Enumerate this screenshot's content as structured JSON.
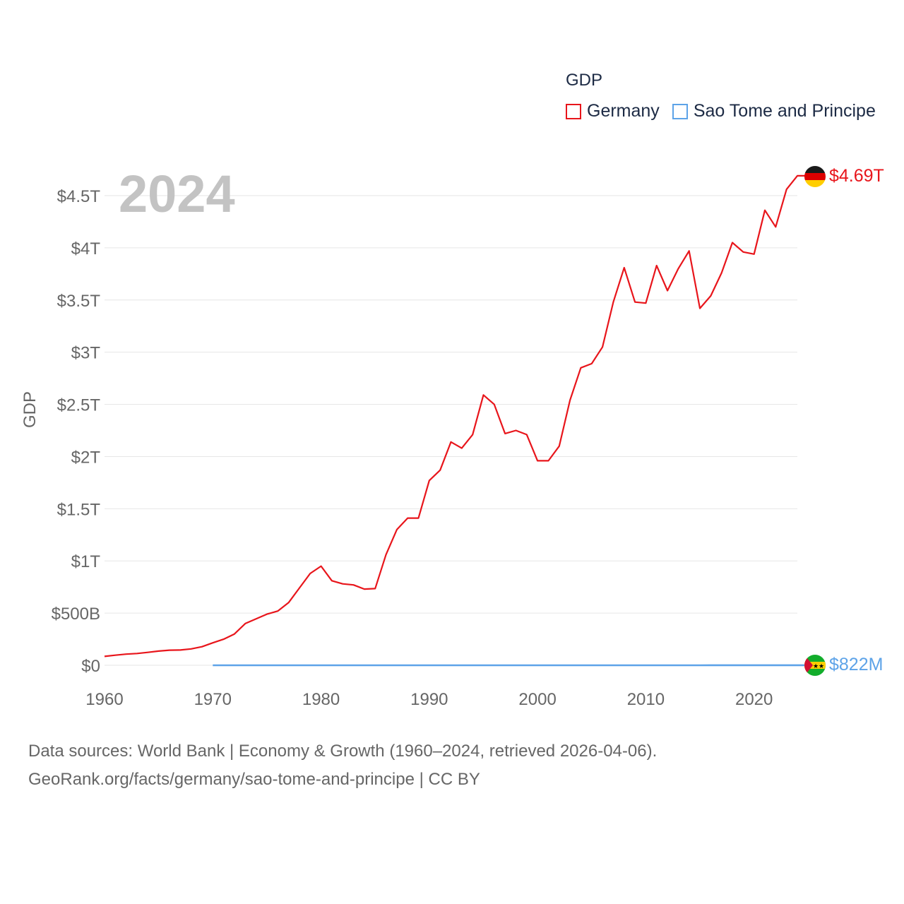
{
  "legend": {
    "title": "GDP",
    "items": [
      {
        "label": "Germany",
        "color": "#e8151b"
      },
      {
        "label": "Sao Tome and Principe",
        "color": "#5da3e8"
      }
    ]
  },
  "footer": {
    "line1": "Data sources: World Bank | Economy & Growth (1960–2024, retrieved 2026-04-06).",
    "line2": "GeoRank.org/facts/germany/sao-tome-and-principe | CC BY"
  },
  "chart_data": {
    "type": "line",
    "title": "GDP",
    "year_label": "2024",
    "ylabel": "GDP",
    "xlabel": "",
    "xlim": [
      1960,
      2024
    ],
    "ylim": [
      0,
      4.5
    ],
    "y_unit": "trillion USD",
    "x_ticks": [
      1960,
      1970,
      1980,
      1990,
      2000,
      2010,
      2020
    ],
    "y_ticks": [
      {
        "value": 0,
        "label": "$0"
      },
      {
        "value": 0.5,
        "label": "$500B"
      },
      {
        "value": 1,
        "label": "$1T"
      },
      {
        "value": 1.5,
        "label": "$1.5T"
      },
      {
        "value": 2,
        "label": "$2T"
      },
      {
        "value": 2.5,
        "label": "$2.5T"
      },
      {
        "value": 3,
        "label": "$3T"
      },
      {
        "value": 3.5,
        "label": "$3.5T"
      },
      {
        "value": 4,
        "label": "$4T"
      },
      {
        "value": 4.5,
        "label": "$4.5T"
      }
    ],
    "grid": true,
    "legend_position": "top-right",
    "series": [
      {
        "name": "Germany",
        "color": "#e8151b",
        "end_label": "$4.69T",
        "x": [
          1960,
          1961,
          1962,
          1963,
          1964,
          1965,
          1966,
          1967,
          1968,
          1969,
          1970,
          1971,
          1972,
          1973,
          1974,
          1975,
          1976,
          1977,
          1978,
          1979,
          1980,
          1981,
          1982,
          1983,
          1984,
          1985,
          1986,
          1987,
          1988,
          1989,
          1990,
          1991,
          1992,
          1993,
          1994,
          1995,
          1996,
          1997,
          1998,
          1999,
          2000,
          2001,
          2002,
          2003,
          2004,
          2005,
          2006,
          2007,
          2008,
          2009,
          2010,
          2011,
          2012,
          2013,
          2014,
          2015,
          2016,
          2017,
          2018,
          2019,
          2020,
          2021,
          2022,
          2023,
          2024
        ],
        "values": [
          0.085,
          0.097,
          0.107,
          0.113,
          0.124,
          0.136,
          0.145,
          0.146,
          0.157,
          0.178,
          0.215,
          0.25,
          0.3,
          0.4,
          0.445,
          0.49,
          0.52,
          0.6,
          0.74,
          0.88,
          0.95,
          0.81,
          0.78,
          0.77,
          0.73,
          0.735,
          1.06,
          1.3,
          1.41,
          1.41,
          1.77,
          1.87,
          2.14,
          2.08,
          2.21,
          2.59,
          2.5,
          2.22,
          2.25,
          2.21,
          1.96,
          1.96,
          2.1,
          2.54,
          2.85,
          2.89,
          3.05,
          3.48,
          3.81,
          3.48,
          3.47,
          3.83,
          3.59,
          3.8,
          3.97,
          3.42,
          3.54,
          3.76,
          4.05,
          3.96,
          3.94,
          4.36,
          4.2,
          4.56,
          4.69
        ]
      },
      {
        "name": "Sao Tome and Principe",
        "color": "#5da3e8",
        "end_label": "$822M",
        "x": [
          1970,
          1975,
          1980,
          1985,
          1990,
          1995,
          2000,
          2005,
          2010,
          2013,
          2015,
          2016,
          2020,
          2024
        ],
        "values": [
          0.0001,
          0.0001,
          0.0001,
          0.0001,
          0.0001,
          0.0001,
          0.0001,
          0.0001,
          0.0002,
          0.0003,
          0.0003,
          0.0004,
          0.0005,
          0.0008
        ]
      }
    ]
  }
}
